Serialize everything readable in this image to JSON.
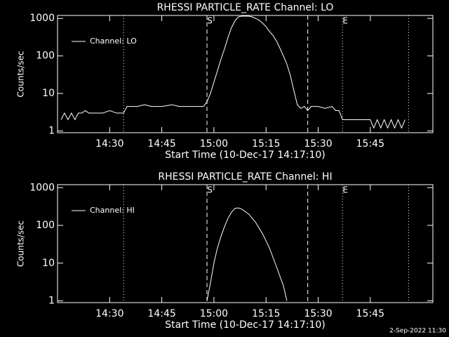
{
  "chart_data": [
    {
      "type": "line",
      "title": "RHESSI PARTICLE_RATE Channel: LO",
      "xlabel": "Start Time (10-Dec-17 14:17:10)",
      "ylabel": "Counts/sec",
      "log_y": true,
      "ylim": [
        0.9,
        1200
      ],
      "yticks": [
        1,
        10,
        100,
        1000
      ],
      "xlim": [
        "14:15",
        "16:03"
      ],
      "xticks": [
        "14:30",
        "14:45",
        "15:00",
        "15:15",
        "15:30",
        "15:45"
      ],
      "legend": "upper left",
      "markers": [
        {
          "x": "14:34",
          "style": "dotted"
        },
        {
          "x": "14:58",
          "style": "dashed"
        },
        {
          "x": "15:27",
          "style": "dashed"
        },
        {
          "x": "15:37",
          "style": "dotted"
        },
        {
          "x": "15:56",
          "style": "dotted"
        }
      ],
      "annotations": [
        {
          "x": "14:58",
          "text": "S"
        },
        {
          "x": "15:37",
          "text": "E"
        }
      ],
      "x": [
        "14:16",
        "14:17",
        "14:18",
        "14:19",
        "14:20",
        "14:21",
        "14:22",
        "14:23",
        "14:24",
        "14:28",
        "14:30",
        "14:32",
        "14:34",
        "14:35",
        "14:38",
        "14:40",
        "14:42",
        "14:45",
        "14:48",
        "14:50",
        "14:55",
        "14:57",
        "14:58",
        "14:59",
        "15:00",
        "15:01",
        "15:02",
        "15:03",
        "15:04",
        "15:05",
        "15:06",
        "15:07",
        "15:08",
        "15:10",
        "15:11",
        "15:12",
        "15:13",
        "15:14",
        "15:15",
        "15:16",
        "15:17",
        "15:18",
        "15:19",
        "15:20",
        "15:21",
        "15:22",
        "15:23",
        "15:24",
        "15:25",
        "15:26",
        "15:27",
        "15:28",
        "15:30",
        "15:32",
        "15:34",
        "15:35",
        "15:36",
        "15:37",
        "15:45",
        "15:46",
        "15:47",
        "15:48",
        "15:49",
        "15:50",
        "15:51",
        "15:52",
        "15:53",
        "15:54",
        "15:55"
      ],
      "series": [
        {
          "name": "Channel: LO",
          "color": "#ffffff",
          "values": [
            2,
            3,
            2,
            3,
            2,
            3,
            3,
            3.5,
            3,
            3,
            3.5,
            3,
            3,
            4.5,
            4.5,
            5,
            4.5,
            4.5,
            5,
            4.5,
            4.5,
            4.5,
            6,
            10,
            20,
            40,
            80,
            150,
            300,
            550,
            850,
            1100,
            1150,
            1150,
            1100,
            1000,
            900,
            750,
            600,
            450,
            350,
            250,
            160,
            100,
            60,
            30,
            12,
            5,
            4,
            4.5,
            3.5,
            4.5,
            4.5,
            4,
            4.5,
            3.5,
            3.5,
            2,
            2,
            1.2,
            2,
            1.2,
            2,
            1.2,
            2,
            1.2,
            2,
            1.2,
            2
          ]
        }
      ]
    },
    {
      "type": "line",
      "title": "RHESSI PARTICLE_RATE Channel: HI",
      "xlabel": "Start Time (10-Dec-17 14:17:10)",
      "ylabel": "Counts/sec",
      "log_y": true,
      "ylim": [
        0.9,
        1200
      ],
      "yticks": [
        1,
        10,
        100,
        1000
      ],
      "xlim": [
        "14:15",
        "16:03"
      ],
      "xticks": [
        "14:30",
        "14:45",
        "15:00",
        "15:15",
        "15:30",
        "15:45"
      ],
      "legend": "upper left",
      "markers": [
        {
          "x": "14:34",
          "style": "dotted"
        },
        {
          "x": "14:58",
          "style": "dashed"
        },
        {
          "x": "15:27",
          "style": "dashed"
        },
        {
          "x": "15:37",
          "style": "dotted"
        },
        {
          "x": "15:56",
          "style": "dotted"
        }
      ],
      "annotations": [
        {
          "x": "14:58",
          "text": "S"
        },
        {
          "x": "15:37",
          "text": "E"
        }
      ],
      "x": [
        "14:58",
        "14:59",
        "15:00",
        "15:01",
        "15:02",
        "15:03",
        "15:04",
        "15:05",
        "15:06",
        "15:07",
        "15:08",
        "15:10",
        "15:12",
        "15:14",
        "15:16",
        "15:18",
        "15:20",
        "15:21"
      ],
      "series": [
        {
          "name": "Channel: HI",
          "color": "#ffffff",
          "values": [
            1,
            3,
            10,
            25,
            50,
            90,
            150,
            220,
            280,
            290,
            270,
            200,
            120,
            60,
            25,
            8,
            2.5,
            1
          ]
        }
      ]
    }
  ],
  "footer": "2-Sep-2022 11:30"
}
